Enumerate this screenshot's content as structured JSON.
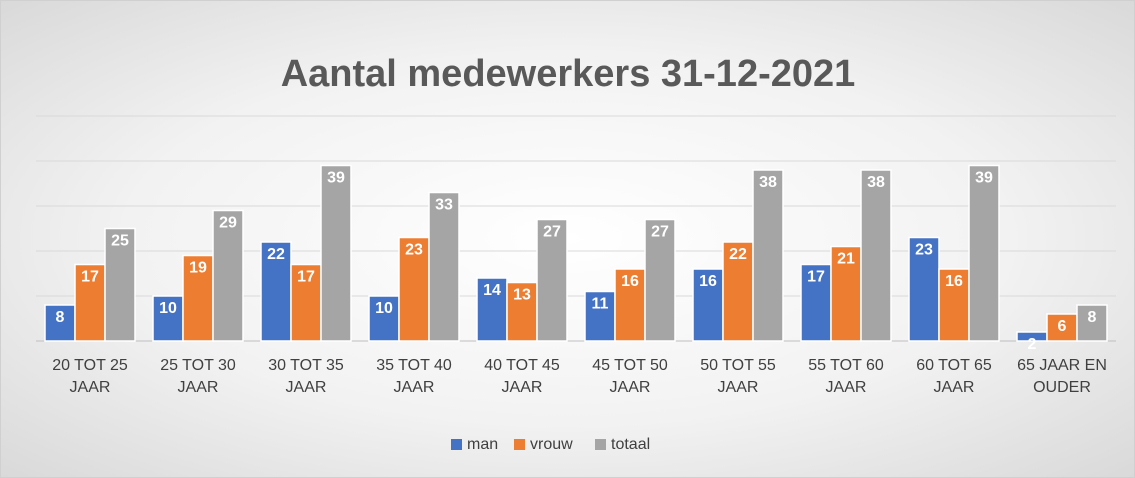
{
  "chart_data": {
    "type": "bar",
    "title": "Aantal medewerkers 31-12-2021",
    "categories": [
      "20 TOT 25 JAAR",
      "25 TOT 30 JAAR",
      "30 TOT 35 JAAR",
      "35 TOT 40 JAAR",
      "40 TOT 45 JAAR",
      "45 TOT 50 JAAR",
      "50 TOT 55 JAAR",
      "55 TOT 60 JAAR",
      "60 TOT 65 JAAR",
      "65 JAAR EN OUDER"
    ],
    "series": [
      {
        "name": "man",
        "color": "#4472c4",
        "values": [
          8,
          10,
          22,
          10,
          14,
          11,
          16,
          17,
          23,
          2
        ]
      },
      {
        "name": "vrouw",
        "color": "#ed7d31",
        "values": [
          17,
          19,
          17,
          23,
          13,
          16,
          22,
          21,
          16,
          6
        ]
      },
      {
        "name": "totaal",
        "color": "#a5a5a5",
        "values": [
          25,
          29,
          39,
          33,
          27,
          27,
          38,
          38,
          39,
          8
        ]
      }
    ],
    "ylim": [
      0,
      50
    ],
    "yticks": [
      0,
      10,
      20,
      30,
      40,
      50
    ],
    "grid": true,
    "legend": "bottom"
  }
}
